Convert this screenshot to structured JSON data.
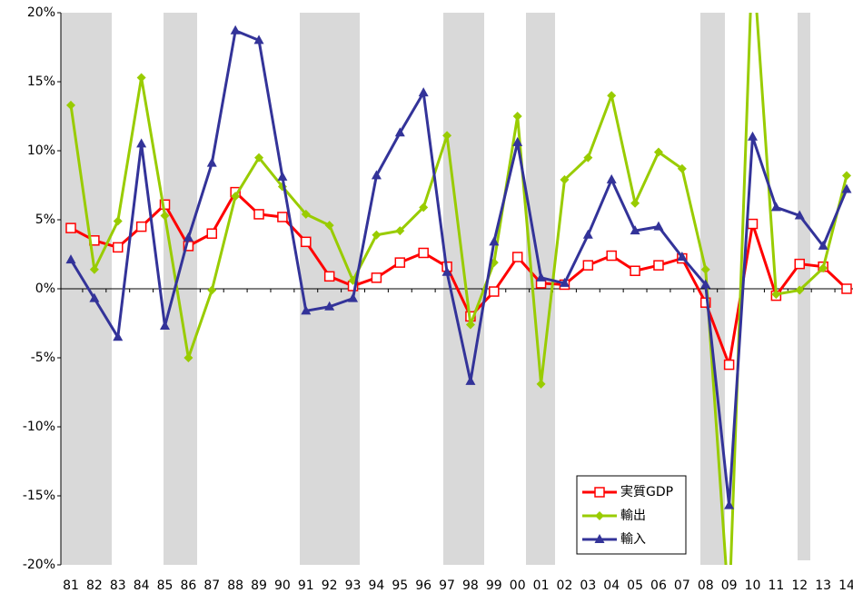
{
  "chart_data": {
    "type": "line",
    "categories": [
      "81",
      "82",
      "83",
      "84",
      "85",
      "86",
      "87",
      "88",
      "89",
      "90",
      "91",
      "92",
      "93",
      "94",
      "95",
      "96",
      "97",
      "98",
      "99",
      "00",
      "01",
      "02",
      "03",
      "04",
      "05",
      "06",
      "07",
      "08",
      "09",
      "10",
      "11",
      "12",
      "13",
      "14"
    ],
    "series": [
      {
        "name": "実質GDP",
        "color": "#ff0000",
        "marker": "square",
        "values": [
          4.4,
          3.5,
          3.0,
          4.5,
          6.1,
          3.1,
          4.0,
          7.0,
          5.4,
          5.2,
          3.4,
          0.9,
          0.2,
          0.8,
          1.9,
          2.6,
          1.6,
          -2.0,
          -0.2,
          2.3,
          0.4,
          0.3,
          1.7,
          2.4,
          1.3,
          1.7,
          2.2,
          -1.0,
          -5.5,
          4.7,
          -0.5,
          1.8,
          1.6,
          0.0
        ]
      },
      {
        "name": "輸出",
        "color": "#99cc00",
        "marker": "diamond",
        "values": [
          13.3,
          1.4,
          4.9,
          15.3,
          5.3,
          -5.0,
          -0.1,
          6.7,
          9.5,
          7.4,
          5.4,
          4.6,
          0.6,
          3.9,
          4.2,
          5.9,
          11.1,
          -2.6,
          1.9,
          12.5,
          -6.9,
          7.9,
          9.5,
          14.0,
          6.2,
          9.9,
          8.7,
          1.4,
          -23.4,
          24.4,
          -0.4,
          -0.1,
          1.5,
          8.2
        ]
      },
      {
        "name": "輸入",
        "color": "#333399",
        "marker": "triangle",
        "values": [
          2.1,
          -0.7,
          -3.5,
          10.5,
          -2.7,
          3.7,
          9.1,
          18.7,
          18.0,
          8.1,
          -1.6,
          -1.3,
          -0.7,
          8.2,
          11.3,
          14.2,
          1.2,
          -6.7,
          3.4,
          10.6,
          0.8,
          0.4,
          3.9,
          7.9,
          4.2,
          4.5,
          2.3,
          0.3,
          -15.7,
          11.0,
          5.9,
          5.3,
          3.1,
          7.2
        ]
      }
    ],
    "ylim": [
      -20,
      20
    ],
    "yticks": [
      {
        "value": -20,
        "label": "-20%"
      },
      {
        "value": -15,
        "label": "-15%"
      },
      {
        "value": -10,
        "label": "-10%"
      },
      {
        "value": -5,
        "label": "-5%"
      },
      {
        "value": 0,
        "label": "0%"
      },
      {
        "value": 5,
        "label": "5%"
      },
      {
        "value": 10,
        "label": "10%"
      },
      {
        "value": 15,
        "label": "15%"
      },
      {
        "value": 20,
        "label": "20%"
      }
    ],
    "legend": "lower right"
  }
}
